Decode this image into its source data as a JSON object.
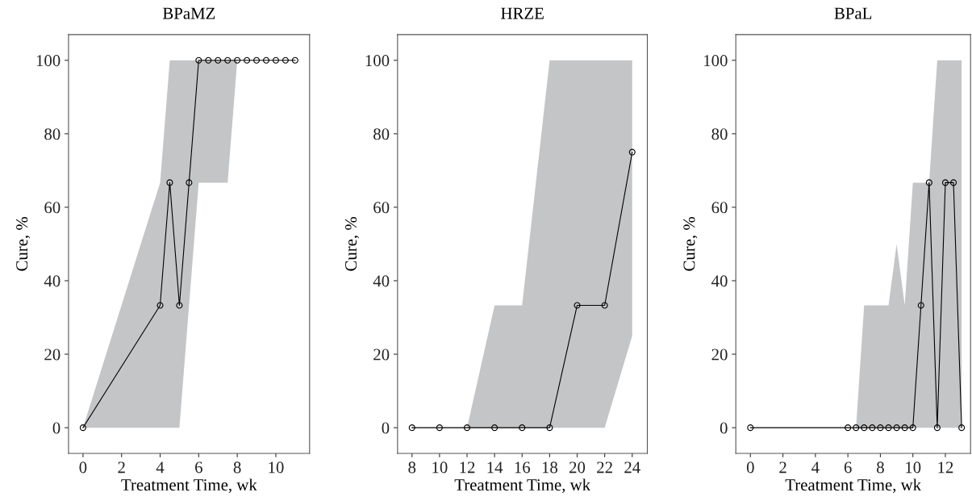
{
  "chart_data": [
    {
      "type": "line",
      "title": "BPaMZ",
      "xlabel": "Treatment Time, wk",
      "ylabel": "Cure, %",
      "xlim": [
        -0.75,
        11.75
      ],
      "xticks": [
        0,
        2,
        4,
        6,
        8,
        10
      ],
      "ylim": [
        -7,
        107
      ],
      "yticks": [
        0,
        20,
        40,
        60,
        80,
        100
      ],
      "grid": false,
      "legend": false,
      "marker": "circle",
      "line_style": "solid",
      "series": [
        {
          "color": "#000000",
          "x": [
            0,
            4,
            4.5,
            5,
            5.5,
            6,
            6.5,
            7,
            7.5,
            8,
            8.5,
            9,
            9.5,
            10,
            10.5,
            11
          ],
          "values": [
            0,
            33.3,
            66.7,
            33.3,
            66.7,
            100,
            100,
            100,
            100,
            100,
            100,
            100,
            100,
            100,
            100,
            100
          ],
          "lower": [
            0,
            0,
            0,
            0,
            33.3,
            66.7,
            66.7,
            66.7,
            66.7,
            100,
            null,
            null,
            null,
            null,
            null,
            null
          ],
          "upper": [
            0,
            66.7,
            100,
            100,
            100,
            100,
            100,
            100,
            100,
            100,
            null,
            null,
            null,
            null,
            null,
            null
          ]
        }
      ]
    },
    {
      "type": "line",
      "title": "HRZE",
      "xlabel": "Treatment Time, wk",
      "ylabel": "Cure, %",
      "xlim": [
        6.95,
        25.1
      ],
      "xticks": [
        8,
        10,
        12,
        14,
        16,
        18,
        20,
        22,
        24
      ],
      "ylim": [
        -7,
        107
      ],
      "yticks": [
        0,
        20,
        40,
        60,
        80,
        100
      ],
      "grid": false,
      "legend": false,
      "marker": "circle",
      "line_style": "solid",
      "series": [
        {
          "color": "#000000",
          "x": [
            8,
            10,
            12,
            14,
            16,
            18,
            20,
            22,
            24
          ],
          "values": [
            0,
            0,
            0,
            0,
            0,
            0,
            33.3,
            33.3,
            75
          ],
          "lower": [
            null,
            null,
            0,
            0,
            0,
            0,
            0,
            0,
            25
          ],
          "upper": [
            null,
            null,
            0,
            33.3,
            33.3,
            100,
            100,
            100,
            100
          ]
        }
      ]
    },
    {
      "type": "line",
      "title": "BPaL",
      "xlabel": "Treatment Time, wk",
      "ylabel": "Cure, %",
      "xlim": [
        -0.9,
        13.55
      ],
      "xticks": [
        0,
        2,
        4,
        6,
        8,
        10,
        12
      ],
      "ylim": [
        -7,
        107
      ],
      "yticks": [
        0,
        20,
        40,
        60,
        80,
        100
      ],
      "grid": false,
      "legend": false,
      "marker": "circle",
      "line_style": "solid",
      "series": [
        {
          "color": "#000000",
          "x": [
            0,
            6,
            6.5,
            7,
            7.5,
            8,
            8.5,
            9,
            9.5,
            10,
            10.5,
            11,
            11.5,
            12,
            12.5,
            13
          ],
          "values": [
            0,
            0,
            0,
            0,
            0,
            0,
            0,
            0,
            0,
            0,
            33.3,
            66.7,
            0,
            66.7,
            66.7,
            0
          ],
          "lower": [
            null,
            null,
            0,
            0,
            0,
            0,
            0,
            0,
            0,
            0,
            0,
            0,
            0,
            0,
            0,
            0
          ],
          "upper": [
            null,
            null,
            0,
            33.3,
            33.3,
            33.3,
            33.3,
            50,
            33.3,
            66.7,
            66.7,
            66.7,
            100,
            100,
            100,
            100
          ]
        }
      ]
    }
  ]
}
